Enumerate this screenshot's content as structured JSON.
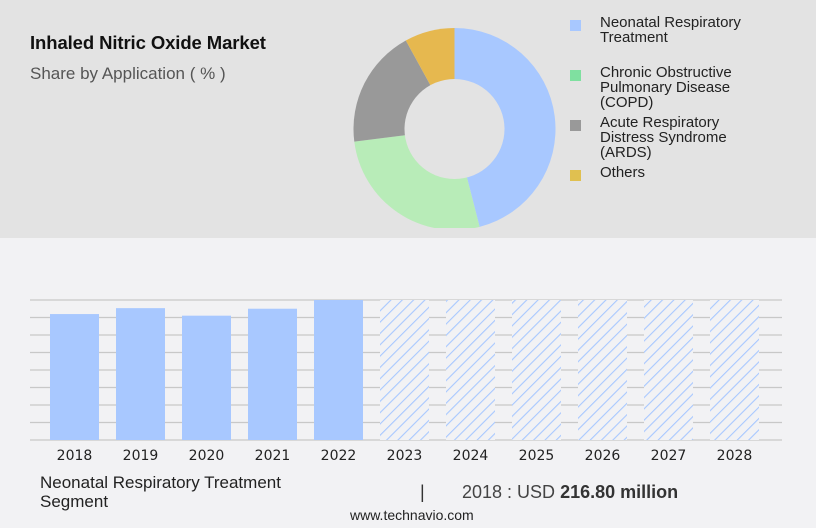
{
  "header": {
    "title": "Inhaled Nitric Oxide Market",
    "subtitle": "Share by Application ( % )"
  },
  "legend": {
    "items": [
      {
        "label_lines": [
          "Neonatal Respiratory",
          "Treatment"
        ],
        "color": "#a8c8ff"
      },
      {
        "label_lines": [
          "Chronic Obstructive",
          "Pulmonary Disease",
          "(COPD)"
        ],
        "color": "#7fe0a0"
      },
      {
        "label_lines": [
          "Acute Respiratory",
          "Distress Syndrome",
          "(ARDS)"
        ],
        "color": "#999999"
      },
      {
        "label_lines": [
          "Others"
        ],
        "color": "#e0c050"
      }
    ]
  },
  "footer": {
    "segment_line1": "Neonatal Respiratory Treatment",
    "segment_line2": "Segment",
    "separator": "|",
    "value_prefix": "2018 : USD ",
    "value_bold": "216.80 million",
    "url": "www.technavio.com"
  },
  "chart_data": [
    {
      "type": "pie",
      "subtype": "donut",
      "title": "Inhaled Nitric Oxide Market",
      "subtitle": "Share by Application ( % )",
      "categories": [
        "Neonatal Respiratory Treatment",
        "Chronic Obstructive Pulmonary Disease (COPD)",
        "Acute Respiratory Distress Syndrome (ARDS)",
        "Others"
      ],
      "values": [
        46,
        27,
        19,
        8
      ],
      "colors": [
        "#a8c8ff",
        "#b8ecb8",
        "#999999",
        "#e6b84f"
      ],
      "legend_position": "right"
    },
    {
      "type": "bar",
      "title": "Neonatal Respiratory Treatment Segment",
      "categories": [
        "2018",
        "2019",
        "2020",
        "2021",
        "2022",
        "2023",
        "2024",
        "2025",
        "2026",
        "2027",
        "2028"
      ],
      "values": [
        216.8,
        227,
        214,
        226,
        241,
        null,
        null,
        null,
        null,
        null,
        null
      ],
      "forecast": [
        false,
        false,
        false,
        false,
        false,
        true,
        true,
        true,
        true,
        true,
        true
      ],
      "annotation": "2018 : USD 216.80 million",
      "xlabel": "",
      "ylabel": "",
      "grid": true,
      "yaxis_labels_shown": false,
      "bar_color": "#a8c8ff"
    }
  ]
}
